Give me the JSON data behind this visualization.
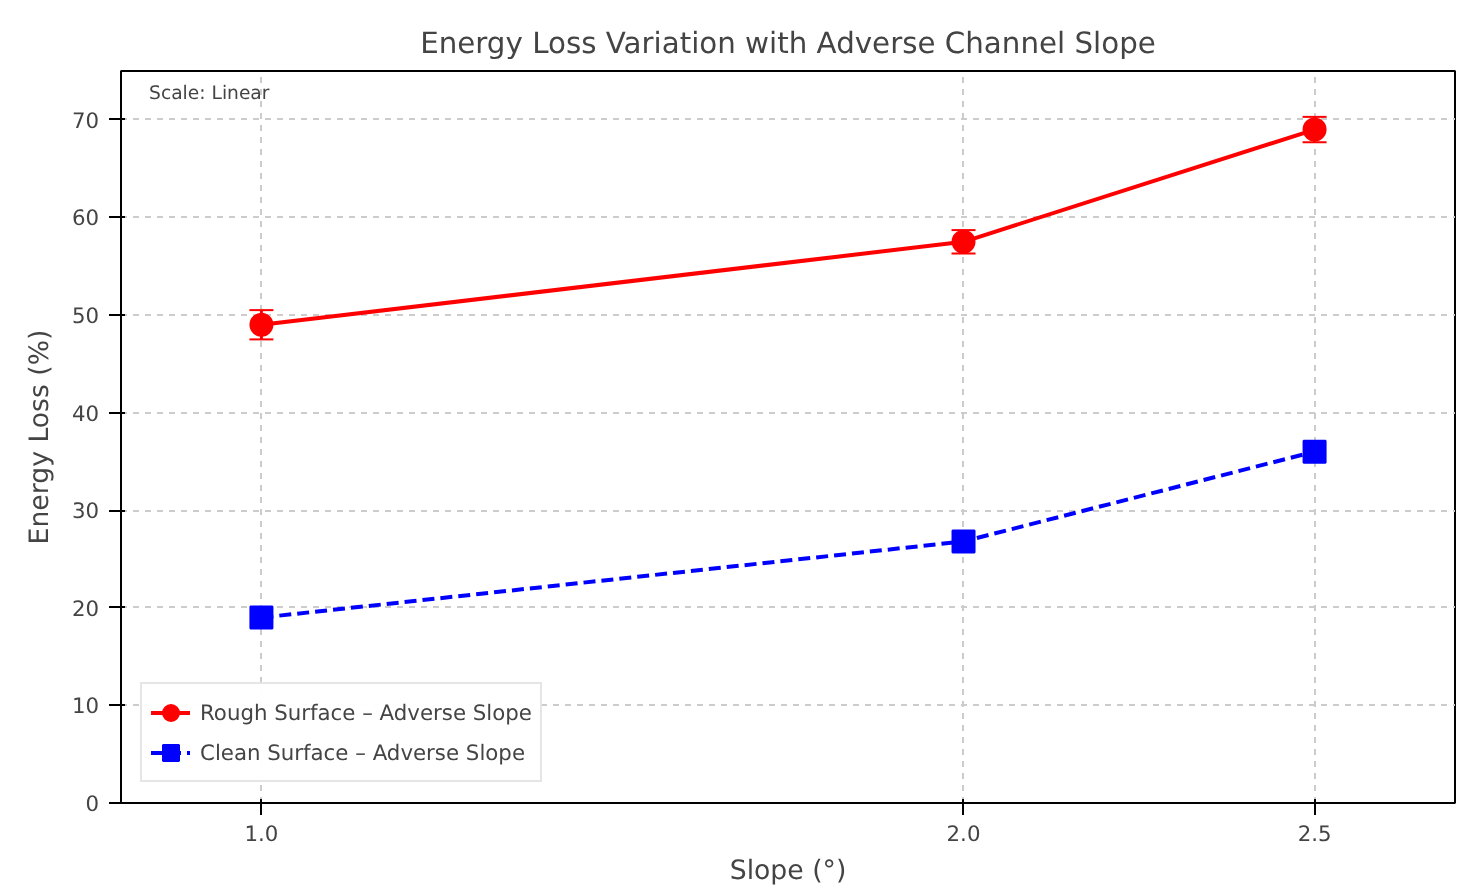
{
  "chart_data": {
    "type": "line",
    "title": "Energy Loss Variation with Adverse Channel Slope",
    "xlabel": "Slope (°)",
    "ylabel": "Energy Loss (%)",
    "x": [
      1.0,
      2.0,
      2.5
    ],
    "series": [
      {
        "name": "Rough Surface – Adverse Slope",
        "color": "#ff0000",
        "values": [
          49,
          57.5,
          69
        ],
        "errors": [
          1.5,
          1.2,
          1.3
        ],
        "marker": "circle",
        "line_style": "solid"
      },
      {
        "name": "Clean Surface – Adverse Slope",
        "color": "#0000ff",
        "values": [
          19,
          26.8,
          36
        ],
        "marker": "square",
        "line_style": "dashed"
      }
    ],
    "xlim": [
      0.8,
      2.7
    ],
    "xticks": [
      {
        "value": 1.0,
        "label": "1.0"
      },
      {
        "value": 2.0,
        "label": "2.0"
      },
      {
        "value": 2.5,
        "label": "2.5"
      }
    ],
    "ylim": [
      0,
      75
    ],
    "yticks": [
      0,
      10,
      20,
      30,
      40,
      50,
      60,
      70
    ],
    "annotations": [
      "Scale: Linear"
    ],
    "grid": true,
    "legend": "bottom left"
  }
}
